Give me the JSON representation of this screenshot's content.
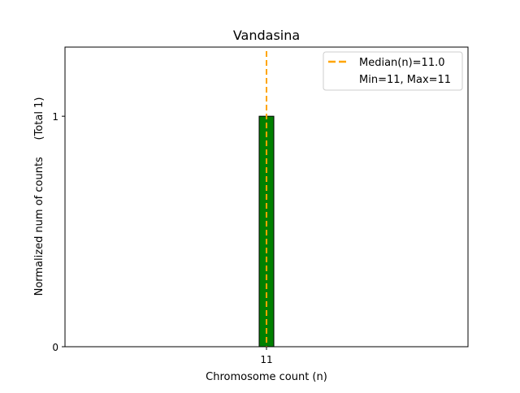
{
  "chart_data": {
    "type": "bar",
    "title": "Vandasina",
    "xlabel": "Chromosome count (n)",
    "ylabel": "Normalized num of counts     (Total 1)",
    "categories": [
      "11"
    ],
    "x": [
      11
    ],
    "values": [
      1
    ],
    "bar_width": 0.8,
    "xlim": [
      0,
      22
    ],
    "ylim": [
      0,
      1.3
    ],
    "xticks": [
      11
    ],
    "xtick_labels": [
      "11"
    ],
    "yticks": [
      0,
      1
    ],
    "ytick_labels": [
      "0",
      "1"
    ],
    "grid": false,
    "bar_color": "#008000",
    "median": 11.0,
    "median_color": "#FFA500",
    "legend": {
      "placement": "upper right",
      "entries": [
        "Median(n)=11.0",
        "Min=11, Max=11"
      ]
    }
  }
}
